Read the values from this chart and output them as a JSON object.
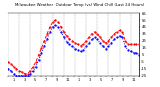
{
  "title": "Milwaukee Weather  Outdoor Temp (vs) Wind Chill (Last 24 Hours)",
  "bg_color": "#ffffff",
  "plot_bg": "#ffffff",
  "grid_color": "#888888",
  "ylim": [
    -25,
    65
  ],
  "ytick_vals": [
    65,
    55,
    45,
    35,
    25,
    15,
    5,
    -5,
    -15,
    -25
  ],
  "temp_color": "#ff0000",
  "chill_color": "#0000ff",
  "n_points": 48,
  "temp": [
    -5,
    -8,
    -12,
    -15,
    -18,
    -20,
    -22,
    -22,
    -18,
    -12,
    -5,
    5,
    15,
    25,
    35,
    45,
    52,
    55,
    52,
    45,
    38,
    32,
    28,
    25,
    22,
    20,
    18,
    20,
    25,
    30,
    35,
    38,
    35,
    30,
    25,
    22,
    25,
    30,
    35,
    38,
    40,
    38,
    25,
    20,
    20,
    20,
    20,
    20
  ],
  "chill": [
    -15,
    -18,
    -22,
    -25,
    -25,
    -25,
    -25,
    -25,
    -22,
    -18,
    -12,
    -2,
    8,
    18,
    28,
    38,
    45,
    48,
    45,
    38,
    30,
    24,
    20,
    17,
    14,
    12,
    10,
    12,
    17,
    22,
    27,
    30,
    27,
    22,
    17,
    14,
    17,
    22,
    27,
    30,
    32,
    30,
    17,
    12,
    10,
    8,
    8,
    5
  ],
  "x_tick_labels": [
    "",
    "1",
    "",
    "3",
    "",
    "5",
    "",
    "7",
    "",
    "9",
    "",
    "11",
    "",
    "1",
    "",
    "3",
    "",
    "5",
    "",
    "7",
    "",
    "9",
    "",
    "11",
    ""
  ]
}
